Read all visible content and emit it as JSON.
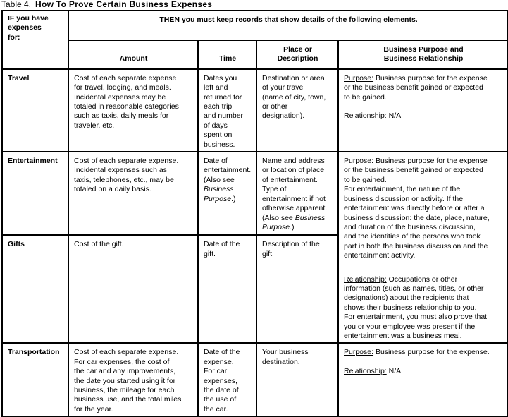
{
  "caption": {
    "number": "Table 4.",
    "title": "How To Prove Certain Business Expenses"
  },
  "header": {
    "row_label": "IF you have\nexpenses\nfor:",
    "span_label": "THEN you must keep records that show details of the following elements.",
    "columns": [
      "Amount",
      "Time",
      "Place or\nDescription",
      "Business Purpose and\nBusiness Relationship"
    ]
  },
  "rows": {
    "travel": {
      "label": "Travel",
      "amount": "Cost of each separate expense\nfor travel, lodging, and meals.\nIncidental expenses may be\ntotaled in reasonable categories\nsuch as taxis, daily meals for\ntraveler, etc.",
      "time": "Dates you\nleft and\nreturned for\neach trip\nand number\nof days\nspent on\nbusiness.",
      "place": "Destination or area\nof your travel\n(name of city, town,\nor other\ndesignation).",
      "purpose_label": "Purpose:",
      "purpose_text": " Business purpose for the expense\nor the business benefit gained or expected\nto be gained.",
      "relationship_label": "Relationship:",
      "relationship_text": " N/A"
    },
    "entertainment": {
      "label": "Entertainment",
      "amount": "Cost of each separate expense.\nIncidental expenses such as\ntaxis, telephones, etc., may be\ntotaled on a daily basis.",
      "time_a": "Date of\nentertainment.\n(Also see\n",
      "time_italic": "Business\nPurpose",
      "time_b": ".)",
      "place_a": "Name and address\nor location of place\nof entertainment.\nType of\nentertainment if not\notherwise apparent.\n(Also see ",
      "place_italic": "Business\nPurpose",
      "place_b": ".)"
    },
    "shared_purpose": {
      "purpose_label": "Purpose:",
      "purpose_text": " Business purpose for the expense\nor the business benefit gained or expected\nto be gained.\nFor entertainment, the nature of the\nbusiness discussion or activity. If the\nentertainment was directly before or after a\nbusiness discussion: the date, place, nature,\nand duration of the business discussion,\nand the identities of the persons who took\npart in both the business discussion and the\nentertainment activity.",
      "relationship_label": "Relationship:",
      "relationship_text": " Occupations or other\ninformation (such as names, titles, or other\ndesignations) about the recipients that\nshows their business relationship to you.\nFor entertainment, you must also prove that\nyou or your employee was present if the\nentertainment was a business meal."
    },
    "gifts": {
      "label": "Gifts",
      "amount": "Cost of the gift.",
      "time": "Date of the\ngift.",
      "place": "Description of the\ngift."
    },
    "transportation": {
      "label": "Transportation",
      "amount": "Cost of each separate expense.\nFor car expenses, the cost of\nthe car and any improvements,\nthe date you started using it for\nbusiness, the mileage for each\nbusiness use, and the total miles\nfor the year.",
      "time": "Date of the\nexpense.\nFor car\nexpenses,\nthe date of\nthe use of\nthe car.",
      "place": "Your business\ndestination.",
      "purpose_label": "Purpose:",
      "purpose_text": " Business purpose for the expense.",
      "relationship_label": "Relationship:",
      "relationship_text": " N/A"
    }
  }
}
